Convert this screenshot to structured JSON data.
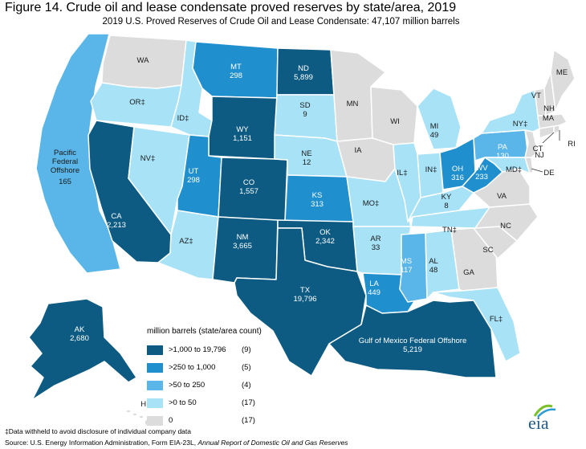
{
  "title": "Figure 14. Crude oil and lease condensate proved reserves by state/area, 2019",
  "subtitle": "2019 U.S. Proved Reserves of Crude Oil and Lease Condensate: 47,107 million barrels",
  "colors": {
    "cat1": "#0d5b82",
    "cat2": "#1f8fce",
    "cat3": "#5ab6e8",
    "cat4": "#a7e2f6",
    "cat5": "#dcdcdc",
    "border": "#ffffff"
  },
  "legend": {
    "title": "million barrels (state/area count)",
    "items": [
      {
        "label": ">1,000 to 19,796",
        "count": "(9)",
        "color": "#0d5b82"
      },
      {
        "label": ">250 to 1,000",
        "count": "(5)",
        "color": "#1f8fce"
      },
      {
        "label": ">50 to 250",
        "count": "(4)",
        "color": "#5ab6e8"
      },
      {
        "label": ">0 to 50",
        "count": "(17)",
        "color": "#a7e2f6"
      },
      {
        "label": "0",
        "count": "(17)",
        "color": "#dcdcdc"
      }
    ]
  },
  "states": {
    "WA": {
      "name": "WA",
      "value": ""
    },
    "OR": {
      "name": "OR‡",
      "value": ""
    },
    "CA": {
      "name": "CA",
      "value": "2,213"
    },
    "NV": {
      "name": "NV‡",
      "value": ""
    },
    "ID": {
      "name": "ID‡",
      "value": ""
    },
    "MT": {
      "name": "MT",
      "value": "298"
    },
    "WY": {
      "name": "WY",
      "value": "1,151"
    },
    "UT": {
      "name": "UT",
      "value": "298"
    },
    "CO": {
      "name": "CO",
      "value": "1,557"
    },
    "AZ": {
      "name": "AZ‡",
      "value": ""
    },
    "NM": {
      "name": "NM",
      "value": "3,665"
    },
    "ND": {
      "name": "ND",
      "value": "5,899"
    },
    "SD": {
      "name": "SD",
      "value": "9"
    },
    "NE": {
      "name": "NE",
      "value": "12"
    },
    "KS": {
      "name": "KS",
      "value": "313"
    },
    "OK": {
      "name": "OK",
      "value": "2,342"
    },
    "TX": {
      "name": "TX",
      "value": "19,796"
    },
    "MN": {
      "name": "MN",
      "value": ""
    },
    "IA": {
      "name": "IA",
      "value": ""
    },
    "MO": {
      "name": "MO‡",
      "value": ""
    },
    "AR": {
      "name": "AR",
      "value": "33"
    },
    "LA": {
      "name": "LA",
      "value": "449"
    },
    "WI": {
      "name": "WI",
      "value": ""
    },
    "IL": {
      "name": "IL‡",
      "value": ""
    },
    "MI": {
      "name": "MI",
      "value": "49"
    },
    "IN": {
      "name": "IN‡",
      "value": ""
    },
    "OH": {
      "name": "OH",
      "value": "316"
    },
    "KY": {
      "name": "KY",
      "value": "8"
    },
    "TN": {
      "name": "TN‡",
      "value": ""
    },
    "MS": {
      "name": "MS",
      "value": "117"
    },
    "AL": {
      "name": "AL",
      "value": "48"
    },
    "GA": {
      "name": "GA",
      "value": ""
    },
    "FL": {
      "name": "FL‡",
      "value": ""
    },
    "SC": {
      "name": "SC",
      "value": ""
    },
    "NC": {
      "name": "NC",
      "value": ""
    },
    "VA": {
      "name": "VA",
      "value": ""
    },
    "WV": {
      "name": "WV",
      "value": "233"
    },
    "PA": {
      "name": "PA",
      "value": "130"
    },
    "NY": {
      "name": "NY‡",
      "value": ""
    },
    "MD": {
      "name": "MD‡",
      "value": ""
    },
    "DE": {
      "name": "DE",
      "value": ""
    },
    "NJ": {
      "name": "NJ",
      "value": ""
    },
    "CT": {
      "name": "CT",
      "value": ""
    },
    "RI": {
      "name": "RI",
      "value": ""
    },
    "MA": {
      "name": "MA",
      "value": ""
    },
    "VT": {
      "name": "VT",
      "value": ""
    },
    "NH": {
      "name": "NH",
      "value": ""
    },
    "ME": {
      "name": "ME",
      "value": ""
    },
    "AK": {
      "name": "AK",
      "value": "2,680"
    },
    "HI": {
      "name": "HI",
      "value": ""
    },
    "PAC": {
      "name": "Pacific Federal Offshore",
      "value": "165"
    },
    "GOM": {
      "name": "Gulf of Mexico Federal Offshore",
      "value": "5,219"
    }
  },
  "footnote": "‡Data withheld to avoid disclosure of individual company data",
  "source_prefix": "Source: U.S. Energy Information Administration, Form EIA-23L, ",
  "source_title": "Annual Report of Domestic Oil and Gas Reserves",
  "logo_text": "eia"
}
